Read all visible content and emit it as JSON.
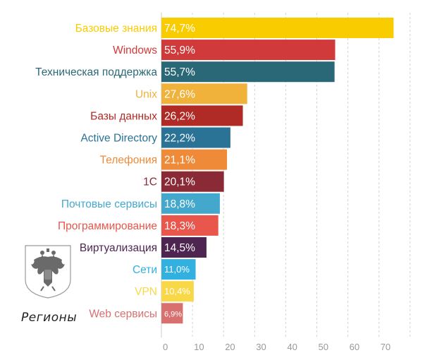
{
  "chart_data": {
    "type": "bar",
    "orientation": "horizontal",
    "categories": [
      "Базовые знания",
      "Windows",
      "Техническая поддержка",
      "Unix",
      "Базы данных",
      "Active Directory",
      "Телефония",
      "1С",
      "Почтовые сервисы",
      "Программирование",
      "Виртуализация",
      "Сети",
      "VPN",
      "Web сервисы"
    ],
    "values": [
      74.7,
      55.9,
      55.7,
      27.6,
      26.2,
      22.2,
      21.1,
      20.1,
      18.8,
      18.3,
      14.5,
      11.0,
      10.4,
      6.9
    ],
    "value_labels": [
      "74,7%",
      "55,9%",
      "55,7%",
      "27,6%",
      "26,2%",
      "22,2%",
      "21,1%",
      "20,1%",
      "18,8%",
      "18,3%",
      "14,5%",
      "11,0%",
      "10,4%",
      "6,9%"
    ],
    "colors": [
      "#f9cc00",
      "#d13a3a",
      "#2a6878",
      "#f0b23a",
      "#b02a26",
      "#2a7296",
      "#ef8a38",
      "#8a2a36",
      "#44a8cc",
      "#e8564c",
      "#4e2450",
      "#32b0e0",
      "#f9d848",
      "#d87070"
    ],
    "xticks": [
      0,
      10,
      20,
      30,
      40,
      50,
      60,
      70
    ],
    "tick_labels": [
      "0",
      "10",
      "20",
      "30",
      "40",
      "50",
      "60",
      "70"
    ],
    "xlim": [
      0,
      80
    ],
    "grid": true,
    "title": "",
    "xlabel": "",
    "ylabel": ""
  },
  "caption": {
    "text": "Регионы",
    "emblem_icon": "russian-coat-of-arms-icon"
  }
}
